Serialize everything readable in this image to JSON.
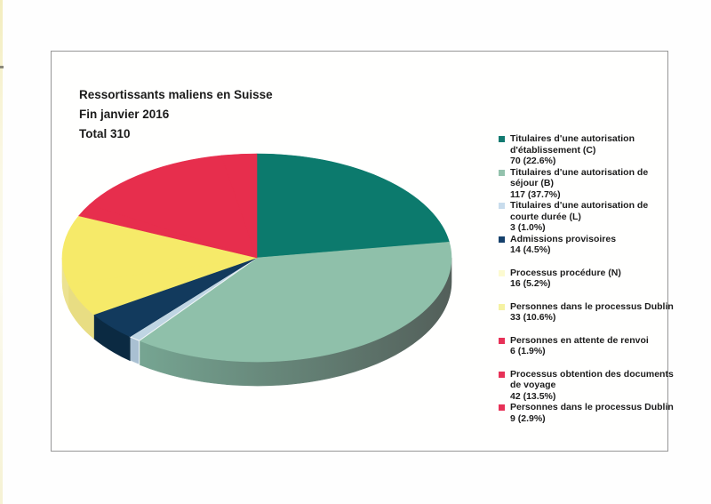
{
  "document": {
    "title_line1": "Ressortissants maliens en Suisse",
    "title_line2": "Fin janvier 2016",
    "title_line3": "Total 310"
  },
  "chart_data": {
    "type": "pie",
    "effect": "3d",
    "title": "Ressortissants maliens en Suisse",
    "subtitle": "Fin janvier 2016",
    "total_label": "Total 310",
    "total": 310,
    "legend_position": "right",
    "start_angle": "12-o-clock-clockwise",
    "slices": [
      {
        "label": "Titulaires d'une autorisation d'établissement (C)",
        "value": 70,
        "pct": "22.6%",
        "color": "#0c7a6d",
        "legend_label": "Titulaires d'une autorisation\nd'établissement (C)",
        "legend_value": "70 (22.6%)",
        "legend_swatch": "#127a70",
        "gap_before": false
      },
      {
        "label": "Titulaires d'une autorisation de séjour (B)",
        "value": 117,
        "pct": "37.7%",
        "color": "#8fc0aa",
        "side_fill": "url(#sideGradB)",
        "side_gradient_from": "#76a592",
        "side_gradient_to": "#535f5a",
        "legend_label": "Titulaires d'une autorisation de\nséjour (B)",
        "legend_value": "117 (37.7%)",
        "legend_swatch": "#93c2ac",
        "gap_before": false
      },
      {
        "label": "Titulaires d'une autorisation de courte durée (L)",
        "value": 3,
        "pct": "1.0%",
        "color": "#bfd5e3",
        "side_fill": "#a9c0d2",
        "edge_stroke": "#f2f6f8",
        "legend_label": "Titulaires d'une autorisation de\ncourte durée (L)",
        "legend_value": "3 (1.0%)",
        "legend_swatch": "#c8dcec",
        "gap_before": false
      },
      {
        "label": "Admissions provisoires",
        "value": 14,
        "pct": "4.5%",
        "color": "#123a5d",
        "side_fill": "#0b2a42",
        "legend_label": "Admissions provisoires",
        "legend_value": "14 (4.5%)",
        "legend_swatch": "#15406b",
        "gap_before": false
      },
      {
        "label": "Processus procédure (N)",
        "value": 16,
        "pct": "5.2%",
        "color": "#f6ea69",
        "side_fill": "#e8dd83",
        "legend_label": "Processus procédure (N)",
        "legend_value": "16 (5.2%)",
        "legend_swatch": "#fcfad0",
        "gap_before": true
      },
      {
        "label": "Personnes dans le processus Dublin",
        "value": 33,
        "pct": "10.6%",
        "color": "#f6ea69",
        "side_fill": "#ece291",
        "legend_label": "Personnes dans le processus Dublin",
        "legend_value": "33 (10.6%)",
        "legend_swatch": "#f5f2a2",
        "gap_before": true
      },
      {
        "label": "Personnes en attente de renvoi",
        "value": 6,
        "pct": "1.9%",
        "color": "#e72e4d",
        "legend_label": "Personnes en attente de renvoi",
        "legend_value": "6 (1.9%)",
        "legend_swatch": "#e73157",
        "gap_before": true
      },
      {
        "label": "Processus obtention des documents de voyage",
        "value": 42,
        "pct": "13.5%",
        "color": "#e72e4d",
        "legend_label": "Processus obtention des documents\nde voyage",
        "legend_value": "42 (13.5%)",
        "legend_swatch": "#e73157",
        "gap_before": true
      },
      {
        "label": "Personnes dans le processus Dublin",
        "value": 9,
        "pct": "2.9%",
        "color": "#e72e4d",
        "legend_label": "Personnes dans le processus Dublin",
        "legend_value": "9 (2.9%)",
        "legend_swatch": "#e73157",
        "gap_before": false
      }
    ]
  }
}
